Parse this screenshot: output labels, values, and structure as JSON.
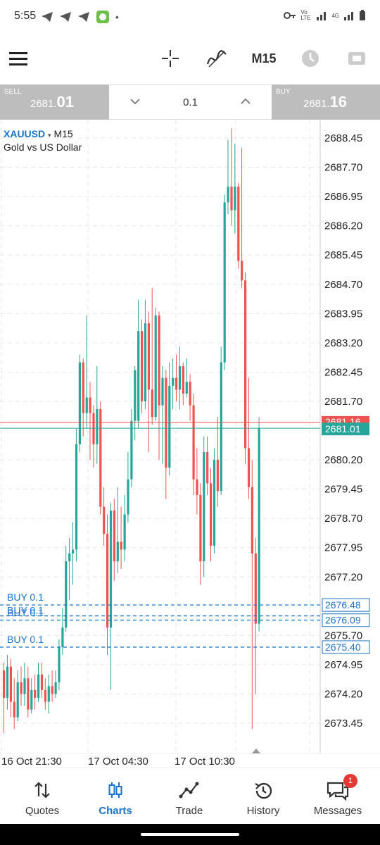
{
  "status": {
    "time": "5:55",
    "net": "Vo LTE",
    "signal": "4G"
  },
  "toolbar": {
    "timeframe": "M15"
  },
  "trade": {
    "sell_label": "SELL",
    "sell_price_main": "2681.",
    "sell_price_big": "01",
    "buy_label": "BUY",
    "buy_price_main": "2681.",
    "buy_price_big": "16",
    "lot": "0.1"
  },
  "chart": {
    "symbol": "XAUUSD",
    "symbol_dropdown": "▾",
    "timeframe": "M15",
    "description": "Gold vs US Dollar",
    "price_ticks": [
      "2688.45",
      "2687.70",
      "2686.95",
      "2686.20",
      "2685.45",
      "2684.70",
      "2683.95",
      "2683.20",
      "2682.45",
      "2681.70",
      "2680.20",
      "2679.45",
      "2678.70",
      "2677.95",
      "2677.20",
      "2675.70",
      "2674.95",
      "2674.20",
      "2673.45"
    ],
    "time_ticks": [
      "16 Oct 21:30",
      "17 Oct 04:30",
      "17 Oct 10:30"
    ],
    "ask_label": "2681.16",
    "bid_label": "2681.01",
    "order_labels": [
      "2676.48",
      "2676.09",
      "2675.40"
    ],
    "order_texts": [
      "BUY 0.1",
      "BUY 0.1",
      "BUY 0.1",
      "BUY 0.1"
    ],
    "colors": {
      "bull": "#26a69a",
      "bear": "#ef5350",
      "order": "#1a73c9"
    }
  },
  "tabs": [
    {
      "label": "Quotes",
      "icon": "sort-arrows-icon"
    },
    {
      "label": "Charts",
      "icon": "candles-icon"
    },
    {
      "label": "Trade",
      "icon": "trade-line-icon"
    },
    {
      "label": "History",
      "icon": "history-clock-icon"
    },
    {
      "label": "Messages",
      "icon": "messages-icon"
    }
  ],
  "badge": "1"
}
